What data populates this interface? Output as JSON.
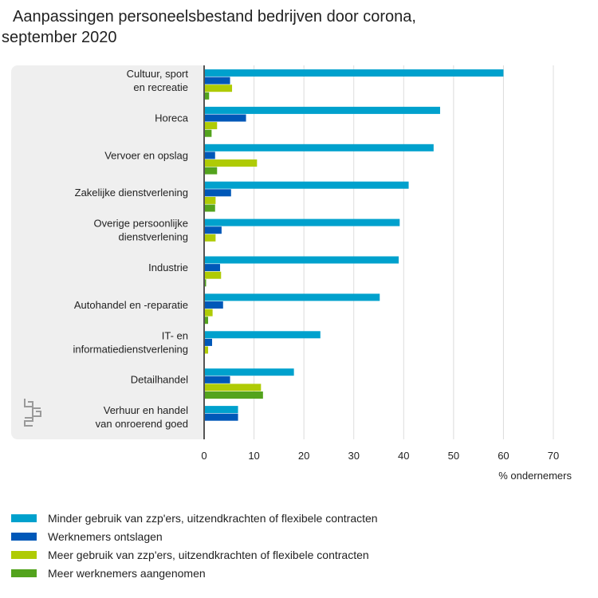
{
  "title": {
    "line1": "Aanpassingen personeelsbestand bedrijven door corona,",
    "line2": "september 2020"
  },
  "logo": {
    "icon": "cbs-logo-icon"
  },
  "chart_data": {
    "type": "bar",
    "orientation": "horizontal",
    "title": "Aanpassingen personeelsbestand bedrijven door corona, september 2020",
    "xlabel": "% ondernemers",
    "xlim": [
      0,
      70
    ],
    "xticks": [
      "0",
      "10",
      "20",
      "30",
      "40",
      "50",
      "60",
      "70"
    ],
    "grid": true,
    "legend_position": "bottom",
    "categories": [
      [
        "Cultuur, sport",
        "en recreatie"
      ],
      [
        "Horeca"
      ],
      [
        "Vervoer en opslag"
      ],
      [
        "Zakelijke dienstverlening"
      ],
      [
        "Overige persoonlijke",
        "dienstverlening"
      ],
      [
        "Industrie"
      ],
      [
        "Autohandel en -reparatie"
      ],
      [
        "IT- en",
        "informatiedienstverlening"
      ],
      [
        "Detailhandel"
      ],
      [
        "Verhuur en handel",
        "van onroerend goed"
      ]
    ],
    "series": [
      {
        "name": "Minder gebruik van zzp'ers, uitzendkrachten of flexibele contracten",
        "color": "#00a1cd",
        "values": [
          60,
          47.3,
          46,
          41,
          39.2,
          39,
          35.2,
          23.3,
          18,
          6.8
        ]
      },
      {
        "name": "Werknemers ontslagen",
        "color": "#0058b8",
        "values": [
          5.2,
          8.4,
          2.2,
          5.4,
          3.5,
          3.2,
          3.8,
          1.6,
          5.2,
          6.8
        ]
      },
      {
        "name": "Meer gebruik van zzp'ers, uitzendkrachten of flexibele contracten",
        "color": "#afcb05",
        "values": [
          5.6,
          2.6,
          10.6,
          2.3,
          2.3,
          3.4,
          1.7,
          0.8,
          11.4,
          0
        ]
      },
      {
        "name": "Meer werknemers aangenomen",
        "color": "#53a31d",
        "values": [
          1,
          1.5,
          2.6,
          2.2,
          0,
          0.4,
          0.8,
          0,
          11.8,
          0
        ]
      }
    ]
  }
}
